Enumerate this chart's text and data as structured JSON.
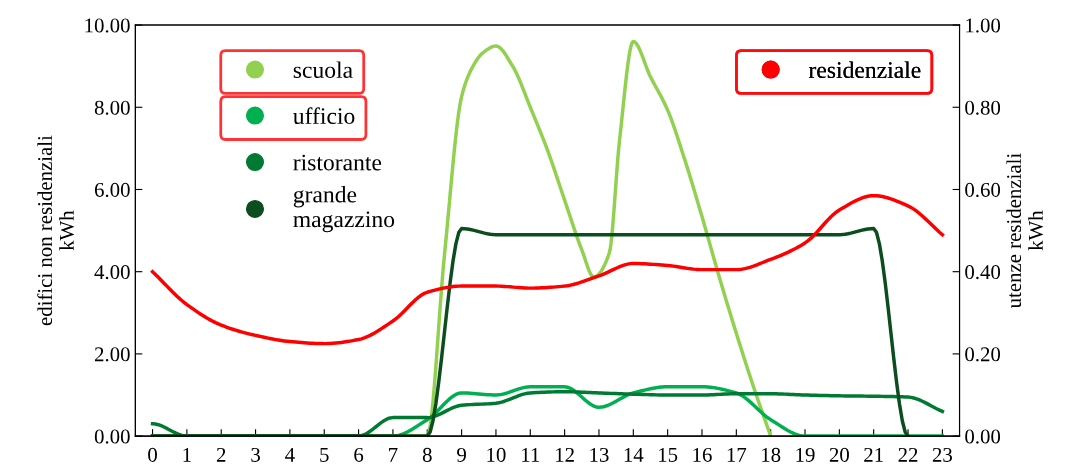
{
  "chart_data": {
    "type": "line",
    "x": [
      0,
      1,
      2,
      3,
      4,
      5,
      6,
      7,
      8,
      9,
      10,
      11,
      12,
      13,
      14,
      15,
      16,
      17,
      18,
      19,
      20,
      21,
      22,
      23
    ],
    "ylabel": "edifici non residenziali\nkWh",
    "y2label": "utenze residenziali\nkWh",
    "xlim": [
      -0.5,
      23.5
    ],
    "xticks": [
      0,
      1,
      2,
      3,
      4,
      5,
      6,
      7,
      8,
      9,
      10,
      11,
      12,
      13,
      14,
      15,
      16,
      17,
      18,
      19,
      20,
      21,
      22,
      23
    ],
    "ylim": [
      0,
      10
    ],
    "yticks": [
      {
        "value": 0,
        "label": "0.00"
      },
      {
        "value": 2,
        "label": "2.00"
      },
      {
        "value": 4,
        "label": "4.00"
      },
      {
        "value": 6,
        "label": "6.00"
      },
      {
        "value": 8,
        "label": "8.00"
      },
      {
        "value": 10,
        "label": "10.00"
      }
    ],
    "y2lim": [
      0,
      1
    ],
    "y2ticks": [
      {
        "value": 0,
        "label": "0.00"
      },
      {
        "value": 0.2,
        "label": "0.20"
      },
      {
        "value": 0.4,
        "label": "0.40"
      },
      {
        "value": 0.6,
        "label": "0.60"
      },
      {
        "value": 0.8,
        "label": "0.80"
      },
      {
        "value": 1,
        "label": "1.00"
      }
    ],
    "grid": false,
    "legend": "top left",
    "series": [
      {
        "name": "scuola",
        "color": "#92d050",
        "x": [
          0,
          1,
          2,
          3,
          4,
          5,
          6,
          7,
          8,
          8.5,
          9,
          9.3,
          9.6,
          10,
          10.5,
          11,
          11.5,
          12,
          12.5,
          12.85,
          13.3,
          13.6,
          14,
          14.5,
          15,
          15.5,
          16,
          16.5,
          17,
          17.5,
          18
        ],
        "values": [
          0,
          0,
          0,
          0,
          0,
          0,
          0,
          0,
          0,
          4.4,
          8.26,
          8.95,
          9.31,
          9.49,
          8.98,
          8.0,
          6.96,
          5.74,
          4.53,
          3.87,
          4.45,
          7.2,
          9.6,
          8.74,
          7.93,
          6.72,
          5.34,
          3.88,
          2.5,
          1.2,
          0
        ]
      },
      {
        "name": "ufficio",
        "color": "#00b050",
        "values": [
          0,
          0,
          0,
          0,
          0,
          0,
          0,
          0,
          0.4,
          1.05,
          1.0,
          1.2,
          1.2,
          0.7,
          1.05,
          1.2,
          1.2,
          1.05,
          0.4,
          0,
          0,
          0,
          0,
          0
        ]
      },
      {
        "name": "ristorante",
        "color": "#007a33",
        "values": [
          0.3,
          0,
          0,
          0,
          0,
          0,
          0,
          0.45,
          0.45,
          0.75,
          0.8,
          1.05,
          1.08,
          1.05,
          1.02,
          1.0,
          1.0,
          1.03,
          1.03,
          1.0,
          0.98,
          0.97,
          0.95,
          0.6
        ]
      },
      {
        "name": "grande\nmagazzino",
        "color": "#0b4d1e",
        "values": [
          0,
          0,
          0,
          0,
          0,
          0,
          0,
          0,
          0,
          5.05,
          4.9,
          4.9,
          4.9,
          4.9,
          4.9,
          4.9,
          4.9,
          4.9,
          4.9,
          4.9,
          4.9,
          5.05,
          0,
          null
        ]
      },
      {
        "name": "residenziale",
        "color": "#ff0000",
        "axis": "y2",
        "values": [
          0.4,
          0.32,
          0.27,
          0.245,
          0.23,
          0.225,
          0.235,
          0.28,
          0.35,
          0.365,
          0.365,
          0.36,
          0.365,
          0.39,
          0.42,
          0.415,
          0.405,
          0.405,
          0.43,
          0.47,
          0.55,
          0.585,
          0.56,
          0.49
        ]
      }
    ]
  }
}
